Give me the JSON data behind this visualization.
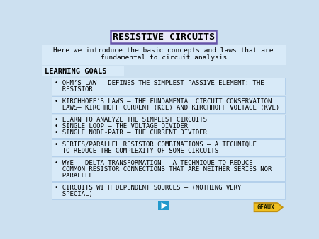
{
  "title": "RESISTIVE CIRCUITS",
  "subtitle_line1": "Here we introduce the basic concepts and laws that are",
  "subtitle_line2": "fundamental to circuit analysis",
  "learning_goals_label": "LEARNING GOALS",
  "bg_color": "#cce0f0",
  "box_bg": "#d8eaf8",
  "box_border": "#a8c8e8",
  "title_border": "#6655aa",
  "title_bg": "#e8e8f8",
  "text_color": "#000000",
  "geaux_color": "#f0c020",
  "geaux_border": "#c09010",
  "play_color": "#2299cc",
  "bullet_boxes": [
    {
      "lines": [
        "• OHM’S LAW – DEFINES THE SIMPLEST PASSIVE ELEMENT: THE",
        "  RESISTOR"
      ],
      "n_lines": 2
    },
    {
      "lines": [
        "• KIRCHHOFF’S LAWS – THE FUNDAMENTAL CIRCUIT CONSERVATION",
        "  LAWS– KIRCHHOFF CURRENT (KCL) AND KIRCHHOFF VOLTAGE (KVL)"
      ],
      "n_lines": 2
    },
    {
      "lines": [
        "• LEARN TO ANALYZE THE SIMPLEST CIRCUITS",
        "• SINGLE LOOP – THE VOLTAGE DIVIDER",
        "• SINGLE NODE-PAIR – THE CURRENT DIVIDER"
      ],
      "n_lines": 3
    },
    {
      "lines": [
        "• SERIES/PARALLEL RESISTOR COMBINATIONS – A TECHNIQUE",
        "  TO REDUCE THE COMPLEXITY OF SOME CIRCUITS"
      ],
      "n_lines": 2
    },
    {
      "lines": [
        "• WYE – DELTA TRANSFORMATION – A TECHNIQUE TO REDUCE",
        "  COMMON RESISTOR CONNECTIONS THAT ARE NEITHER SERIES NOR",
        "  PARALLEL"
      ],
      "n_lines": 3
    },
    {
      "lines": [
        "• CIRCUITS WITH DEPENDENT SOURCES – (NOTHING VERY",
        "  SPECIAL)"
      ],
      "n_lines": 2
    }
  ]
}
